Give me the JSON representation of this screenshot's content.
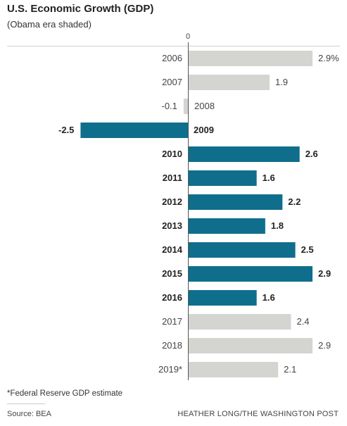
{
  "chart_data": {
    "type": "bar",
    "orientation": "horizontal",
    "title": "U.S. Economic Growth (GDP)",
    "subtitle": "(Obama era shaded)",
    "zero_label": "0",
    "xlim": [
      -2.5,
      2.9
    ],
    "categories": [
      "2006",
      "2007",
      "2008",
      "2009",
      "2010",
      "2011",
      "2012",
      "2013",
      "2014",
      "2015",
      "2016",
      "2017",
      "2018",
      "2019*"
    ],
    "values": [
      2.9,
      1.9,
      -0.1,
      -2.5,
      2.6,
      1.6,
      2.2,
      1.8,
      2.5,
      2.9,
      1.6,
      2.4,
      2.9,
      2.1
    ],
    "value_labels": [
      "2.9%",
      "1.9",
      "-0.1",
      "-2.5",
      "2.6",
      "1.6",
      "2.2",
      "1.8",
      "2.5",
      "2.9",
      "1.6",
      "2.4",
      "2.9",
      "2.1"
    ],
    "obama_era": [
      false,
      false,
      false,
      true,
      true,
      true,
      true,
      true,
      true,
      true,
      true,
      false,
      false,
      false
    ],
    "colors": {
      "obama": "#0f6e8c",
      "other": "#d4d4d0",
      "axis": "#555555",
      "gridline": "#cfcfcf"
    }
  },
  "footnote": "*Federal Reserve GDP estimate",
  "source": "Source: BEA",
  "credit": "HEATHER LONG/THE WASHINGTON POST"
}
